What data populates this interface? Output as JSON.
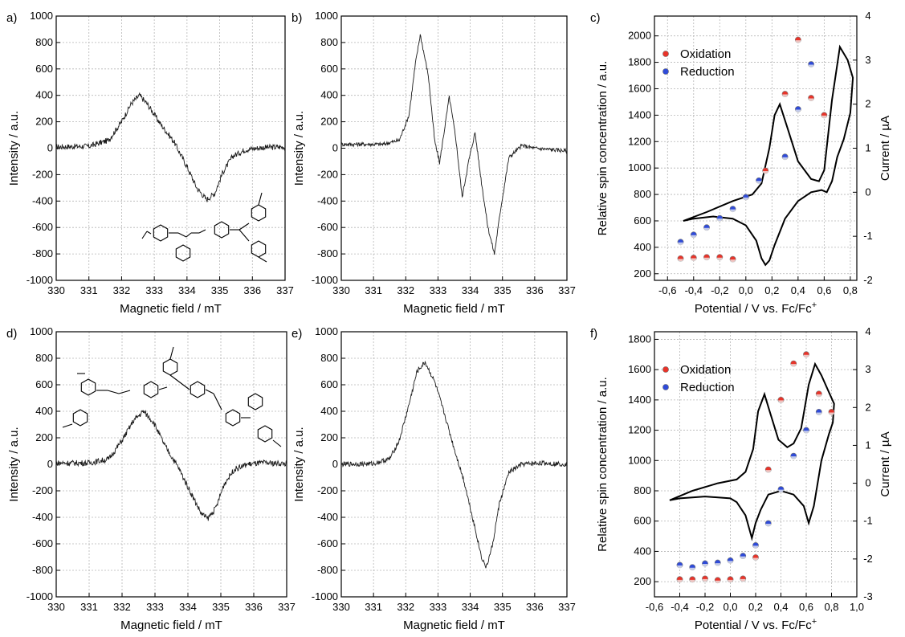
{
  "chart_data": [
    {
      "id": "a",
      "panel_label": "a)",
      "type": "line",
      "xlabel": "Magnetic field / mT",
      "ylabel": "Intensity / a.u.",
      "xlim": [
        330,
        337
      ],
      "ylim": [
        -1000,
        1000
      ],
      "xticks": [
        "330",
        "331",
        "332",
        "333",
        "334",
        "335",
        "336",
        "337"
      ],
      "yticks": [
        "-1000",
        "-800",
        "-600",
        "-400",
        "-200",
        "0",
        "200",
        "400",
        "600",
        "800",
        "1000"
      ],
      "grid": true,
      "series": [
        {
          "x": [
            330,
            331,
            331.6,
            332,
            332.3,
            332.55,
            332.8,
            333.2,
            333.6,
            334,
            334.3,
            334.6,
            334.85,
            335.1,
            335.4,
            335.8,
            336.3,
            337
          ],
          "y": [
            10,
            15,
            60,
            200,
            340,
            400,
            330,
            180,
            50,
            -140,
            -300,
            -390,
            -340,
            -180,
            -60,
            -10,
            5,
            10
          ],
          "noise": 22
        }
      ],
      "inset": "structure-1"
    },
    {
      "id": "b",
      "panel_label": "b)",
      "type": "line",
      "xlabel": "Magnetic field / mT",
      "ylabel": "Intensity / a.u.",
      "xlim": [
        330,
        337
      ],
      "ylim": [
        -1000,
        1000
      ],
      "xticks": [
        "330",
        "331",
        "332",
        "333",
        "334",
        "335",
        "336",
        "337"
      ],
      "yticks": [
        "-1000",
        "-800",
        "-600",
        "-400",
        "-200",
        "0",
        "200",
        "400",
        "600",
        "800",
        "1000"
      ],
      "grid": true,
      "series": [
        {
          "x": [
            330,
            331.3,
            331.8,
            332.1,
            332.3,
            332.45,
            332.7,
            332.9,
            333.05,
            333.35,
            333.55,
            333.75,
            333.95,
            334.15,
            334.35,
            334.55,
            334.75,
            334.95,
            335.2,
            335.6,
            336,
            337
          ],
          "y": [
            30,
            30,
            60,
            250,
            640,
            860,
            550,
            50,
            -110,
            390,
            80,
            -370,
            -100,
            120,
            -260,
            -600,
            -800,
            -450,
            -70,
            20,
            0,
            -20
          ],
          "noise": 15
        }
      ]
    },
    {
      "id": "c",
      "panel_label": "c)",
      "type": "scatter",
      "xlabel": "Potential / V vs. Fc/Fc",
      "xlabel_sup": "+",
      "ylabel": "Relative spin concentration / a.u.",
      "y2label": "Current / µA",
      "xlim": [
        -0.7,
        0.85
      ],
      "ylim": [
        150,
        2150
      ],
      "y2lim": [
        -2,
        4
      ],
      "xticks": [
        "-0,6",
        "-0,4",
        "-0,2",
        "0,0",
        "0,2",
        "0,4",
        "0,6",
        "0,8"
      ],
      "yticks": [
        "200",
        "400",
        "600",
        "800",
        "1000",
        "1200",
        "1400",
        "1600",
        "1800",
        "2000"
      ],
      "y2ticks": [
        "-2",
        "-1",
        "0",
        "1",
        "2",
        "3",
        "4"
      ],
      "grid": true,
      "legend": {
        "position": "top-left",
        "entries": [
          "Oxidation",
          "Reduction"
        ]
      },
      "series": [
        {
          "name": "Oxidation",
          "color": "#e8342a",
          "x": [
            -0.5,
            -0.4,
            -0.3,
            -0.2,
            -0.1,
            0.15,
            0.3,
            0.4,
            0.5,
            0.6
          ],
          "y": [
            315,
            320,
            325,
            325,
            310,
            980,
            1560,
            1970,
            1530,
            1400
          ]
        },
        {
          "name": "Reduction",
          "color": "#2f4bd8",
          "x": [
            -0.5,
            -0.4,
            -0.3,
            -0.2,
            -0.1,
            0.0,
            0.1,
            0.3,
            0.4,
            0.5
          ],
          "y": [
            440,
            495,
            550,
            620,
            690,
            780,
            905,
            1085,
            1445,
            1785
          ]
        }
      ],
      "cv": {
        "axis": "y2",
        "x": [
          -0.48,
          -0.3,
          -0.1,
          0.05,
          0.12,
          0.18,
          0.22,
          0.26,
          0.32,
          0.4,
          0.5,
          0.56,
          0.6,
          0.66,
          0.72,
          0.78,
          0.82,
          0.8,
          0.75,
          0.7,
          0.66,
          0.62,
          0.58,
          0.5,
          0.4,
          0.3,
          0.22,
          0.18,
          0.15,
          0.12,
          0.08,
          0.0,
          -0.1,
          -0.25,
          -0.4,
          -0.48
        ],
        "y": [
          -0.65,
          -0.45,
          -0.2,
          -0.05,
          0.2,
          1.0,
          1.75,
          2.0,
          1.45,
          0.7,
          0.3,
          0.25,
          0.5,
          2.1,
          3.3,
          3.0,
          2.6,
          1.8,
          1.2,
          0.8,
          0.25,
          0.0,
          0.05,
          0.0,
          -0.2,
          -0.6,
          -1.2,
          -1.55,
          -1.65,
          -1.5,
          -1.1,
          -0.75,
          -0.6,
          -0.55,
          -0.6,
          -0.65
        ]
      }
    },
    {
      "id": "d",
      "panel_label": "d)",
      "type": "line",
      "xlabel": "Magnetic field / mT",
      "ylabel": "Intensity / a.u.",
      "xlim": [
        330,
        337
      ],
      "ylim": [
        -1000,
        1000
      ],
      "xticks": [
        "330",
        "331",
        "332",
        "333",
        "334",
        "335",
        "336",
        "337"
      ],
      "yticks": [
        "-1000",
        "-800",
        "-600",
        "-400",
        "-200",
        "0",
        "200",
        "400",
        "600",
        "800",
        "1000"
      ],
      "grid": true,
      "series": [
        {
          "x": [
            330,
            331,
            331.6,
            332,
            332.35,
            332.65,
            332.95,
            333.3,
            333.7,
            334.1,
            334.4,
            334.6,
            334.85,
            335.1,
            335.4,
            335.8,
            336.3,
            337
          ],
          "y": [
            10,
            10,
            40,
            180,
            330,
            400,
            320,
            140,
            -20,
            -220,
            -370,
            -410,
            -330,
            -150,
            -40,
            0,
            10,
            5
          ],
          "noise": 22
        }
      ],
      "inset": "structure-2"
    },
    {
      "id": "e",
      "panel_label": "e)",
      "type": "line",
      "xlabel": "Magnetic field / mT",
      "ylabel": "Intensity / a.u.",
      "xlim": [
        330,
        337
      ],
      "ylim": [
        -1000,
        1000
      ],
      "xticks": [
        "330",
        "331",
        "332",
        "333",
        "334",
        "335",
        "336",
        "337"
      ],
      "yticks": [
        "-1000",
        "-800",
        "-600",
        "-400",
        "-200",
        "0",
        "200",
        "400",
        "600",
        "800",
        "1000"
      ],
      "grid": true,
      "series": [
        {
          "x": [
            330,
            331,
            331.5,
            331.8,
            332.1,
            332.35,
            332.6,
            332.9,
            333.2,
            333.5,
            333.8,
            334.1,
            334.35,
            334.5,
            334.7,
            334.9,
            335.2,
            335.6,
            336.2,
            337
          ],
          "y": [
            0,
            5,
            40,
            180,
            450,
            700,
            770,
            620,
            380,
            120,
            -120,
            -430,
            -700,
            -780,
            -600,
            -300,
            -60,
            0,
            10,
            0
          ],
          "noise": 18
        }
      ]
    },
    {
      "id": "f",
      "panel_label": "f)",
      "type": "scatter",
      "xlabel": "Potential / V vs. Fc/Fc",
      "xlabel_sup": "+",
      "ylabel": "Relative spin concentration / a.u.",
      "y2label": "Current / µA",
      "xlim": [
        -0.6,
        1.0
      ],
      "ylim": [
        100,
        1850
      ],
      "y2lim": [
        -3,
        4
      ],
      "xticks": [
        "-0,6",
        "-0,4",
        "-0,2",
        "0,0",
        "0,2",
        "0,4",
        "0,6",
        "0,8",
        "1,0"
      ],
      "yticks": [
        "200",
        "400",
        "600",
        "800",
        "1000",
        "1200",
        "1400",
        "1600",
        "1800"
      ],
      "y2ticks": [
        "-3",
        "-2",
        "-1",
        "0",
        "1",
        "2",
        "3",
        "4"
      ],
      "grid": true,
      "legend": {
        "position": "top-left",
        "entries": [
          "Oxidation",
          "Reduction"
        ]
      },
      "series": [
        {
          "name": "Oxidation",
          "color": "#e8342a",
          "x": [
            -0.4,
            -0.3,
            -0.2,
            -0.1,
            0.0,
            0.1,
            0.2,
            0.3,
            0.4,
            0.5,
            0.6,
            0.7,
            0.8
          ],
          "y": [
            215,
            215,
            220,
            210,
            215,
            220,
            360,
            940,
            1400,
            1640,
            1700,
            1440,
            1320
          ]
        },
        {
          "name": "Reduction",
          "color": "#2f4bd8",
          "x": [
            -0.4,
            -0.3,
            -0.2,
            -0.1,
            0.0,
            0.1,
            0.2,
            0.3,
            0.4,
            0.5,
            0.6,
            0.7
          ],
          "y": [
            310,
            295,
            320,
            325,
            340,
            370,
            440,
            585,
            810,
            1030,
            1200,
            1320
          ]
        }
      ],
      "cv": {
        "axis": "y2",
        "x": [
          -0.48,
          -0.3,
          -0.1,
          0.05,
          0.12,
          0.18,
          0.22,
          0.27,
          0.32,
          0.38,
          0.45,
          0.5,
          0.56,
          0.62,
          0.67,
          0.72,
          0.78,
          0.82,
          0.81,
          0.78,
          0.72,
          0.66,
          0.62,
          0.58,
          0.5,
          0.4,
          0.3,
          0.24,
          0.2,
          0.17,
          0.12,
          0.05,
          0.0,
          -0.2,
          -0.4,
          -0.48
        ],
        "y": [
          -0.45,
          -0.2,
          0.0,
          0.1,
          0.3,
          0.9,
          1.9,
          2.35,
          1.8,
          1.15,
          0.95,
          1.05,
          1.45,
          2.6,
          3.15,
          2.85,
          2.4,
          2.1,
          1.6,
          1.3,
          0.6,
          -0.6,
          -1.05,
          -0.6,
          -0.3,
          -0.2,
          -0.3,
          -0.7,
          -1.05,
          -1.45,
          -0.85,
          -0.5,
          -0.4,
          -0.35,
          -0.4,
          -0.45
        ]
      }
    }
  ]
}
